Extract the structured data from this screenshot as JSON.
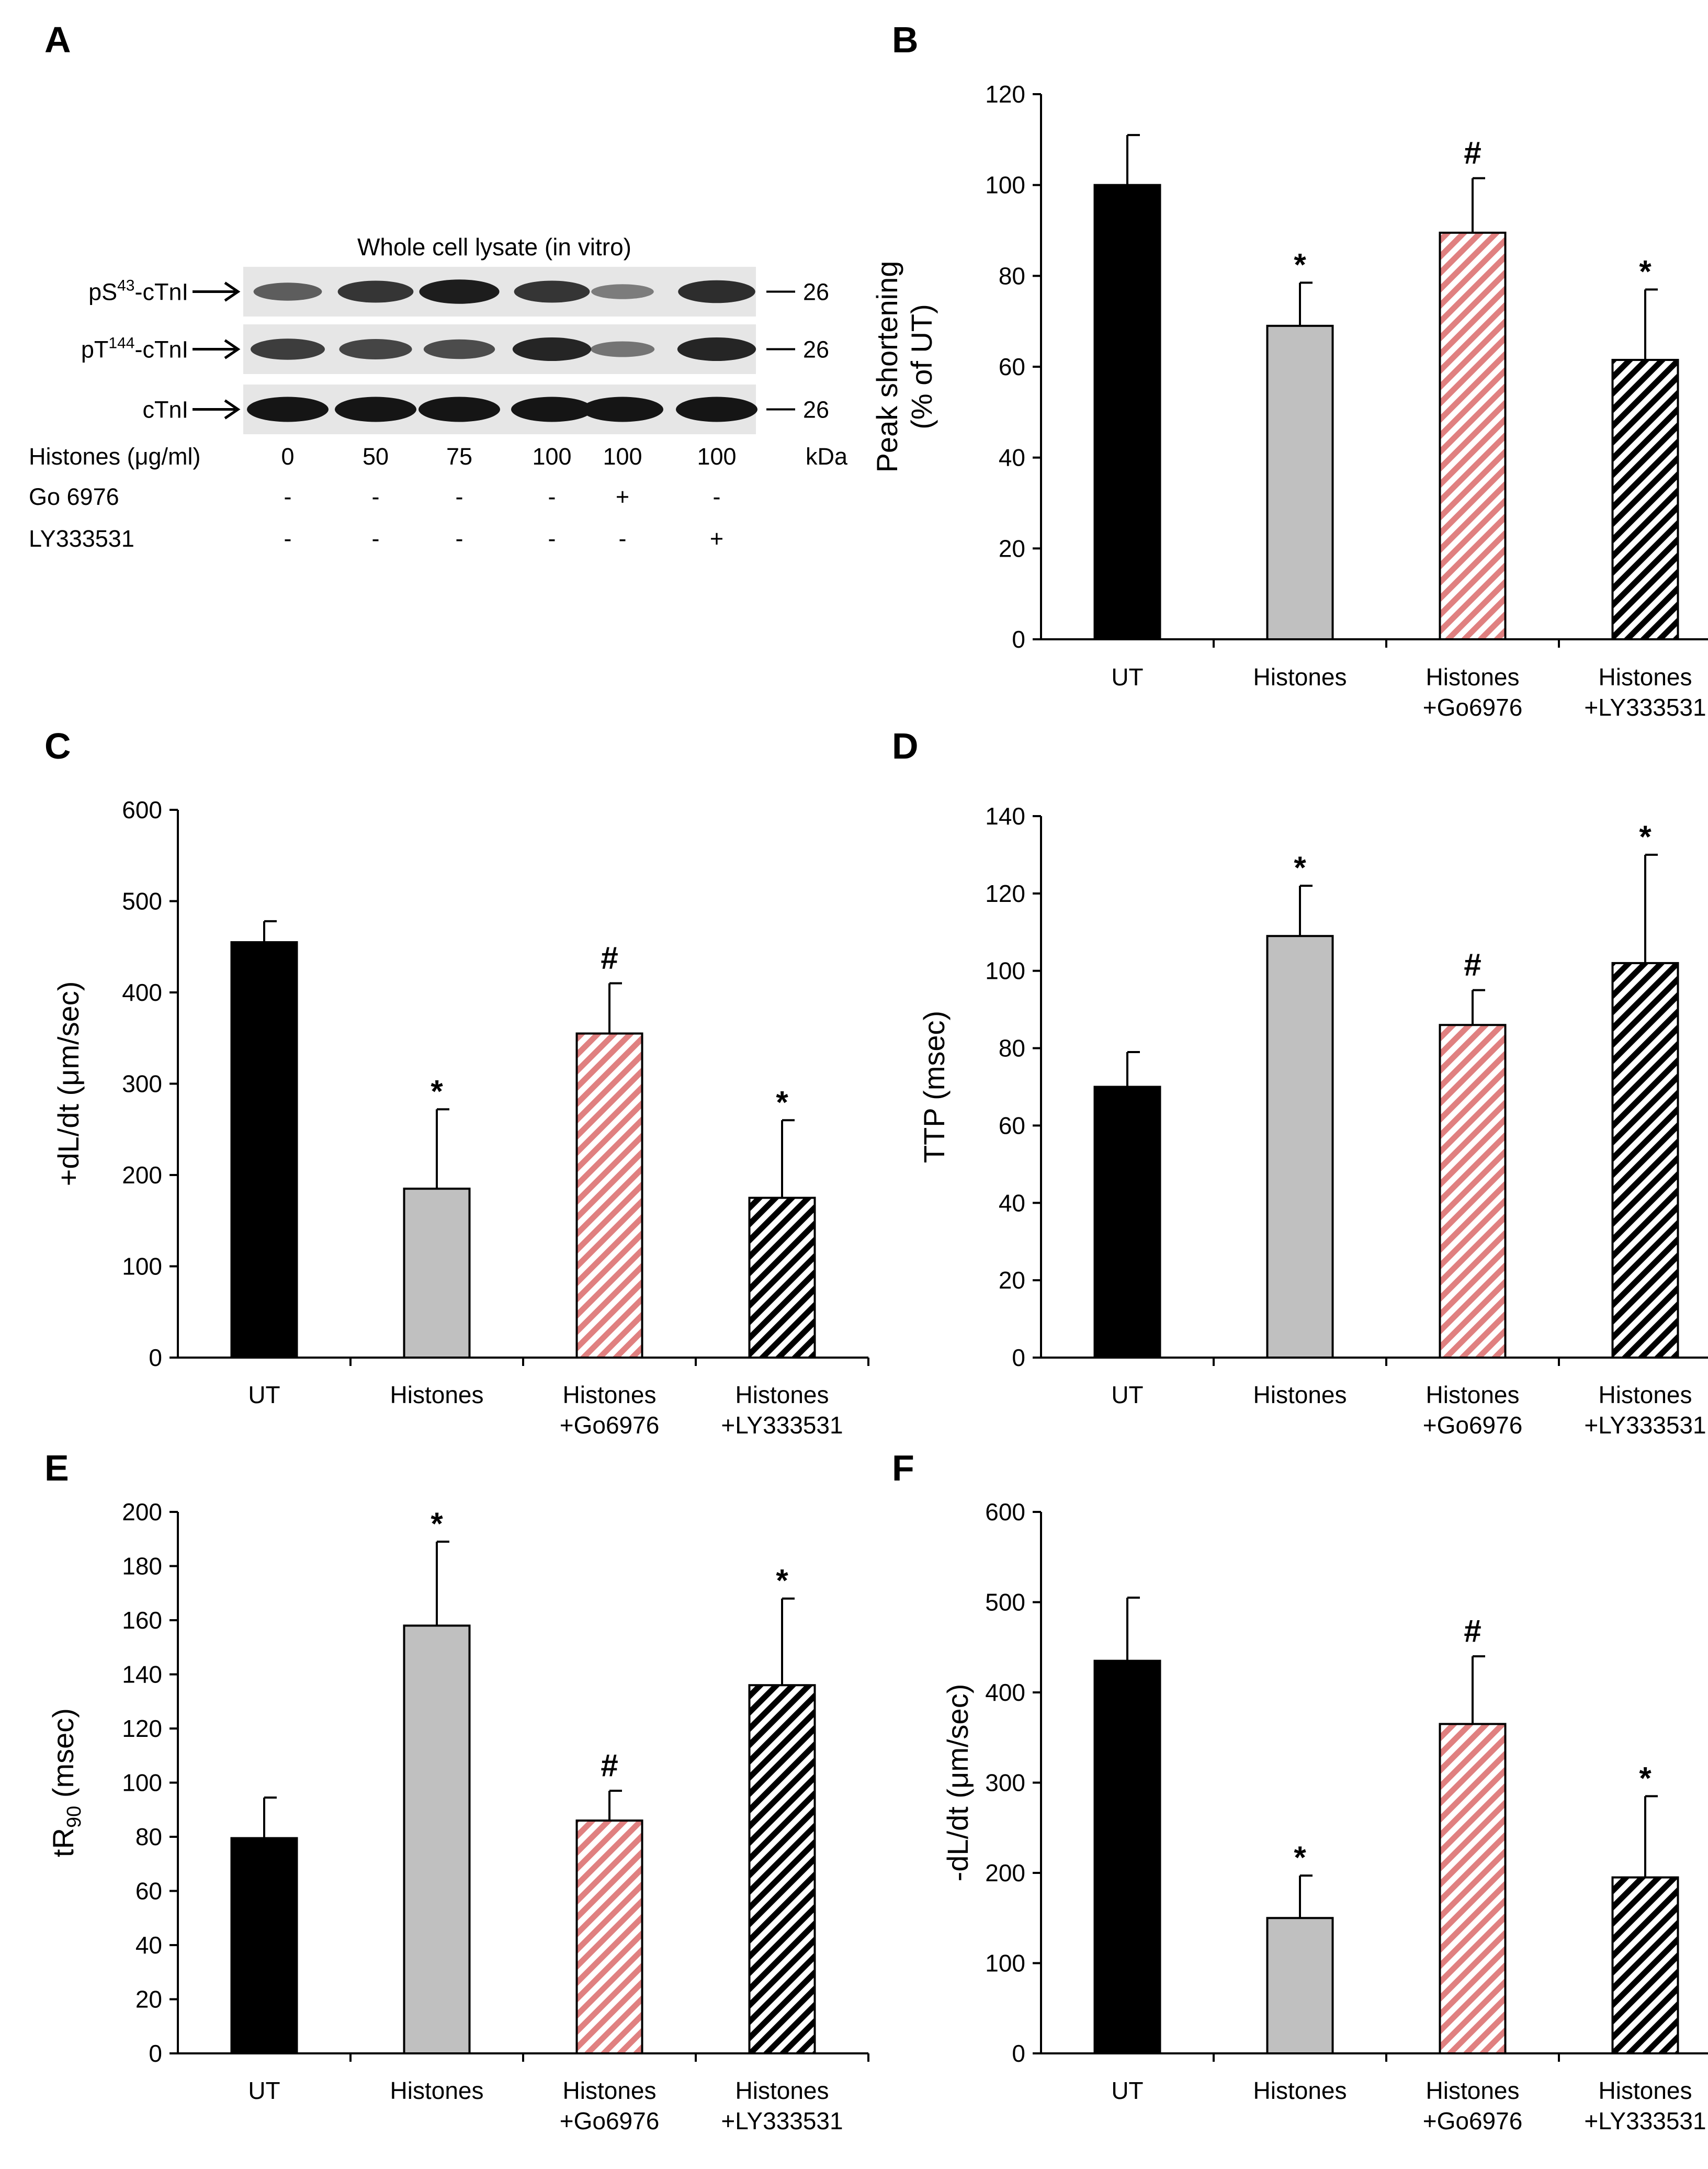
{
  "colors": {
    "ut": "#000000",
    "histones": "#c0c0c0",
    "go6976": "#e08080",
    "ly": "#ffffff",
    "stroke": "#000000",
    "blot_bg": "#e6e6e6",
    "band": "#151515"
  },
  "western_blot": {
    "panel_label": "A",
    "title": "Whole cell lysate (in vitro)",
    "rows": [
      {
        "label_pre": "pS",
        "label_sup": "43",
        "label_post": "-cTnI",
        "kda": "26",
        "intensity": [
          0.55,
          0.8,
          0.95,
          0.8,
          0.35,
          0.85
        ]
      },
      {
        "label_pre": "pT",
        "label_sup": "144",
        "label_post": "-cTnI",
        "kda": "26",
        "intensity": [
          0.75,
          0.7,
          0.65,
          0.9,
          0.4,
          0.9
        ]
      },
      {
        "label_pre": "cTnI",
        "label_sup": "",
        "label_post": "",
        "kda": "26",
        "intensity": [
          1,
          1,
          1,
          1,
          1,
          1
        ]
      }
    ],
    "kda_unit": "kDa",
    "treatment_rows": [
      {
        "label": "Histones (μg/ml)",
        "values": [
          "0",
          "50",
          "75",
          "100",
          "100",
          "100"
        ]
      },
      {
        "label": "Go 6976",
        "values": [
          "-",
          "-",
          "-",
          "-",
          "+",
          "-"
        ]
      },
      {
        "label": "LY333531",
        "values": [
          "-",
          "-",
          "-",
          "-",
          "-",
          "+"
        ]
      }
    ]
  },
  "chart_data": [
    {
      "id": "B",
      "panel_label": "B",
      "type": "bar",
      "categories": [
        [
          "UT"
        ],
        [
          "Histones"
        ],
        [
          "Histones",
          "+Go6976"
        ],
        [
          "Histones",
          "+LY333531"
        ]
      ],
      "values": [
        100,
        69,
        89.5,
        61.5
      ],
      "errors": [
        11,
        9.5,
        12,
        15.5
      ],
      "annotations": [
        "",
        "*",
        "#",
        "*"
      ],
      "ylabel": [
        "Peak shortening",
        "(% of UT)"
      ],
      "ylim": [
        0,
        120
      ],
      "yticks": [
        0,
        20,
        40,
        60,
        80,
        100,
        120
      ]
    },
    {
      "id": "C",
      "panel_label": "C",
      "type": "bar",
      "categories": [
        [
          "UT"
        ],
        [
          "Histones"
        ],
        [
          "Histones",
          "+Go6976"
        ],
        [
          "Histones",
          "+LY333531"
        ]
      ],
      "values": [
        455,
        185,
        355,
        175
      ],
      "errors": [
        23,
        87,
        55,
        85
      ],
      "annotations": [
        "",
        "*",
        "#",
        "*"
      ],
      "ylabel": [
        "+dL/dt (μm/sec)"
      ],
      "ylim": [
        0,
        600
      ],
      "yticks": [
        0,
        100,
        200,
        300,
        400,
        500,
        600
      ]
    },
    {
      "id": "D",
      "panel_label": "D",
      "type": "bar",
      "categories": [
        [
          "UT"
        ],
        [
          "Histones"
        ],
        [
          "Histones",
          "+Go6976"
        ],
        [
          "Histones",
          "+LY333531"
        ]
      ],
      "values": [
        70,
        109,
        86,
        102
      ],
      "errors": [
        9,
        13,
        9,
        28
      ],
      "annotations": [
        "",
        "*",
        "#",
        "*"
      ],
      "ylabel": [
        "TTP (msec)"
      ],
      "ylim": [
        0,
        140
      ],
      "yticks": [
        0,
        20,
        40,
        60,
        80,
        100,
        120,
        140
      ]
    },
    {
      "id": "E",
      "panel_label": "E",
      "type": "bar",
      "categories": [
        [
          "UT"
        ],
        [
          "Histones"
        ],
        [
          "Histones",
          "+Go6976"
        ],
        [
          "Histones",
          "+LY333531"
        ]
      ],
      "values": [
        79.5,
        158,
        86,
        136
      ],
      "errors": [
        15,
        31,
        11,
        32
      ],
      "annotations": [
        "",
        "*",
        "#",
        "*"
      ],
      "ylabel": [
        "tR",
        "90",
        " (msec)"
      ],
      "ylabel_subscript": true,
      "ylim": [
        0,
        200
      ],
      "yticks": [
        0,
        20,
        40,
        60,
        80,
        100,
        120,
        140,
        160,
        180,
        200
      ]
    },
    {
      "id": "F",
      "panel_label": "F",
      "type": "bar",
      "categories": [
        [
          "UT"
        ],
        [
          "Histones"
        ],
        [
          "Histones",
          "+Go6976"
        ],
        [
          "Histones",
          "+LY333531"
        ]
      ],
      "values": [
        435,
        150,
        365,
        195
      ],
      "errors": [
        70,
        47,
        75,
        90
      ],
      "annotations": [
        "",
        "*",
        "#",
        "*"
      ],
      "ylabel": [
        "-dL/dt (μm/sec)"
      ],
      "ylim": [
        0,
        600
      ],
      "yticks": [
        0,
        100,
        200,
        300,
        400,
        500,
        600
      ]
    }
  ]
}
